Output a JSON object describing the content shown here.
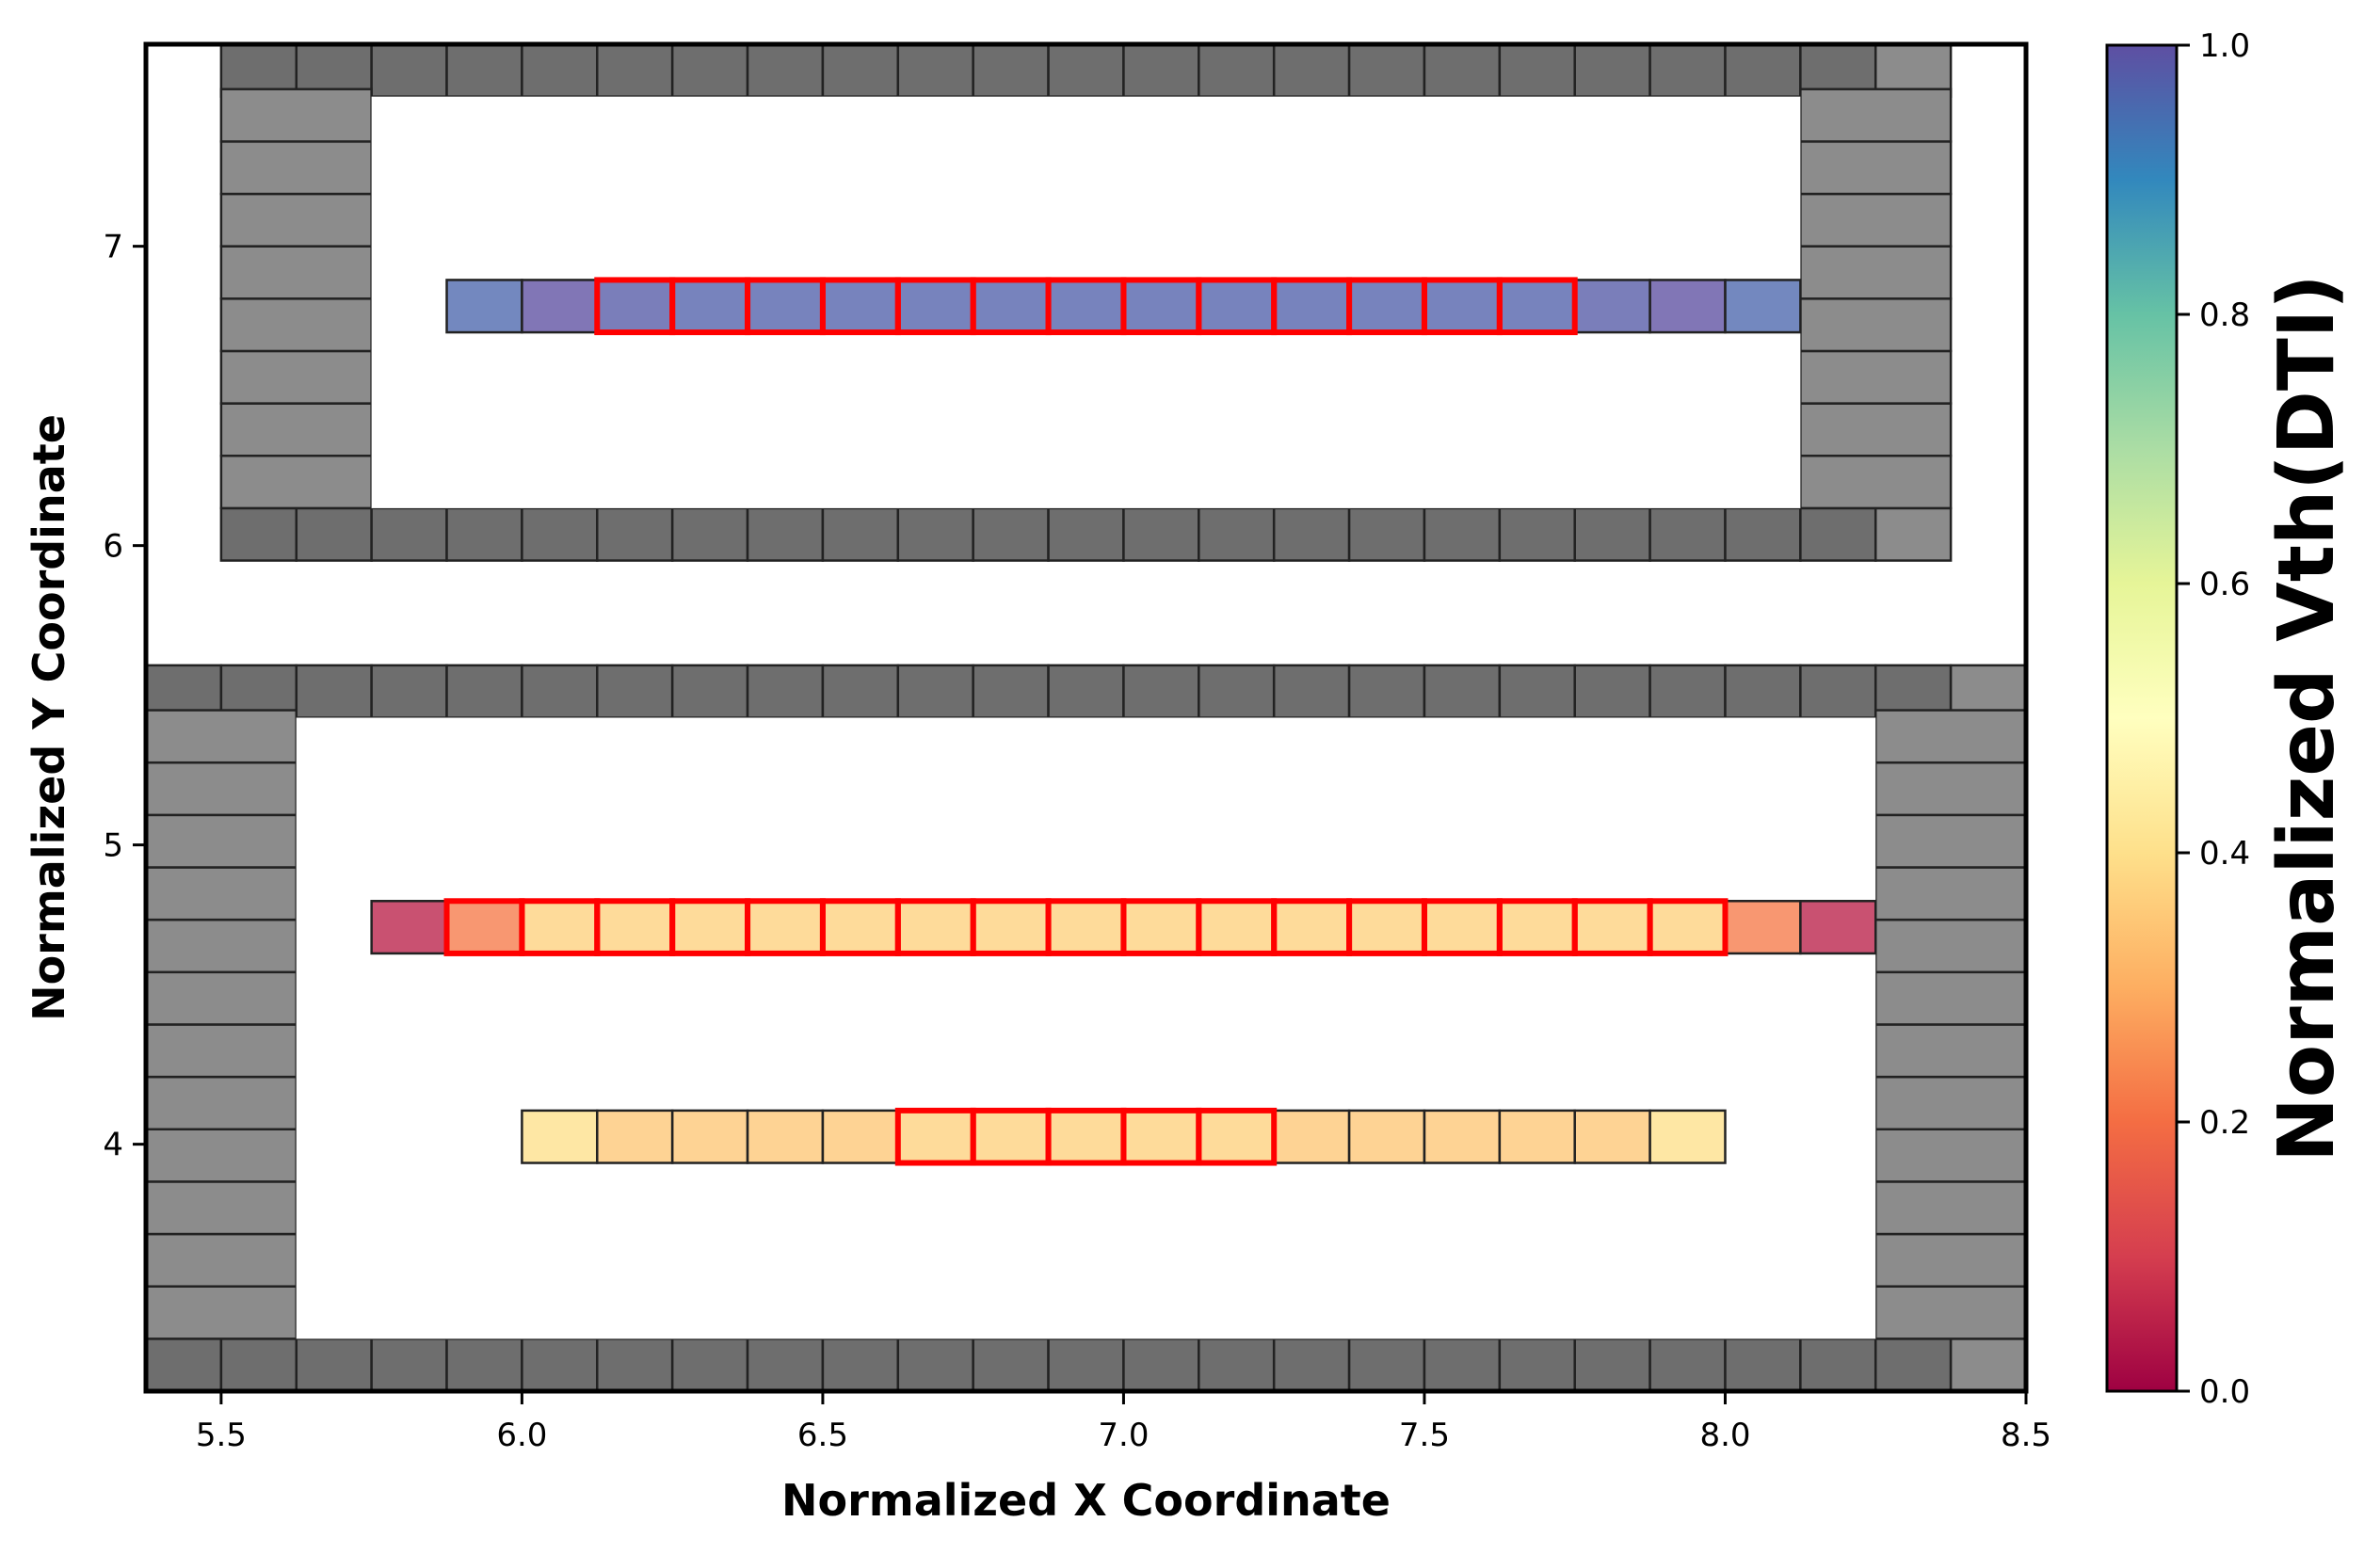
{
  "chart_data": {
    "type": "heatmap",
    "xlabel": "Normalized X Coordinate",
    "ylabel": "Normalized Y Coordinate",
    "xlim": [
      5.375,
      8.5
    ],
    "ylim": [
      3.175,
      7.675
    ],
    "xticks": [
      5.5,
      6.0,
      6.5,
      7.0,
      7.5,
      8.0,
      8.5
    ],
    "xtick_labels": [
      "5.5",
      "6.0",
      "6.5",
      "7.0",
      "7.5",
      "8.0",
      "8.5"
    ],
    "yticks": [
      4,
      5,
      6,
      7
    ],
    "ytick_labels": [
      "4",
      "5",
      "6",
      "7"
    ],
    "grid": false,
    "cell_size": [
      0.125,
      0.175
    ],
    "colorbar": {
      "label": "Normalized Vth(DTI)",
      "colormap": "Spectral",
      "range": [
        0.0,
        1.0
      ],
      "ticks": [
        0.0,
        0.2,
        0.4,
        0.6,
        0.8,
        1.0
      ],
      "tick_labels": [
        "0.0",
        "0.2",
        "0.4",
        "0.6",
        "0.8",
        "1.0"
      ],
      "gradient_colors": [
        "#9e0142",
        "#d53e4f",
        "#f46d43",
        "#fdae61",
        "#fee08b",
        "#ffffbf",
        "#e6f598",
        "#abdda4",
        "#66c2a5",
        "#3288bd",
        "#5e4fa2"
      ]
    },
    "colors": {
      "dummy_cell": "#6e6e6e",
      "dummy_cell_light": "#8c8c8c",
      "highlight_border": "#ff0000",
      "cell_border": "#222222"
    },
    "dummy_rings": [
      {
        "name": "upper",
        "x_range": [
          5.5,
          8.375
        ],
        "y_range": [
          5.95,
          7.675
        ],
        "thickness_x": 2
      },
      {
        "name": "lower",
        "x_range": [
          5.375,
          8.5
        ],
        "y_range": [
          3.175,
          5.6
        ],
        "thickness_x": 2
      }
    ],
    "rows": [
      {
        "name": "row-top",
        "y_center": 6.8,
        "x_start": 5.875,
        "values": [
          0.96,
          1.0,
          0.98,
          0.97,
          0.97,
          0.97,
          0.97,
          0.97,
          0.97,
          0.97,
          0.97,
          0.97,
          0.97,
          0.97,
          0.97,
          0.98,
          1.0,
          0.96
        ],
        "highlight_range": [
          6.125,
          7.75
        ]
      },
      {
        "name": "row-middle",
        "y_center": 4.725,
        "x_start": 5.75,
        "values": [
          0.05,
          0.22,
          0.37,
          0.37,
          0.37,
          0.37,
          0.37,
          0.37,
          0.37,
          0.37,
          0.37,
          0.37,
          0.37,
          0.37,
          0.37,
          0.37,
          0.37,
          0.37,
          0.22,
          0.05
        ],
        "highlight_range": [
          5.875,
          8.0
        ]
      },
      {
        "name": "row-bottom",
        "y_center": 4.025,
        "x_start": 6.0,
        "values": [
          0.4,
          0.35,
          0.35,
          0.35,
          0.35,
          0.37,
          0.37,
          0.37,
          0.37,
          0.37,
          0.35,
          0.35,
          0.35,
          0.35,
          0.35,
          0.4
        ],
        "highlight_range": [
          6.625,
          7.25
        ]
      }
    ]
  }
}
